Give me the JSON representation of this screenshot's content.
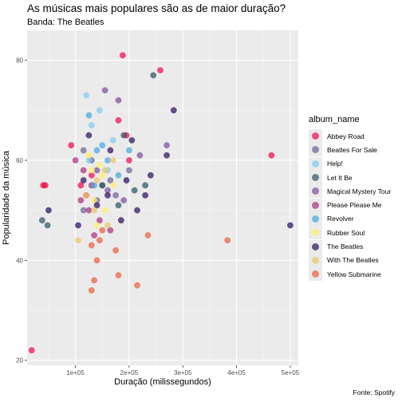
{
  "chart_data": {
    "type": "scatter",
    "title": "As músicas mais populares são as de maior duração?",
    "subtitle": "Banda: The Beatles",
    "xlabel": "Duração (milissegundos)",
    "ylabel": "Popularidade da música",
    "caption": "Fonte: Spotify",
    "xlim": [
      10000,
      515000
    ],
    "ylim": [
      19000,
      86000
    ],
    "ylim_units": "popularity",
    "y_range": [
      19,
      86
    ],
    "x_ticks": [
      100000,
      200000,
      300000,
      400000,
      500000
    ],
    "x_tick_labels": [
      "1e+05",
      "2e+05",
      "3e+05",
      "4e+05",
      "5e+05"
    ],
    "y_ticks": [
      20,
      40,
      60,
      80
    ],
    "y_tick_labels": [
      "20",
      "40",
      "60",
      "80"
    ],
    "grid": true,
    "legend_position": "right",
    "legend_title": "album_name",
    "series": [
      {
        "name": "Abbey Road",
        "color": "#ee0a4a",
        "points": [
          [
            18500,
            22
          ],
          [
            40000,
            55
          ],
          [
            44000,
            55
          ],
          [
            92000,
            63
          ],
          [
            188000,
            81
          ],
          [
            258000,
            78
          ],
          [
            180000,
            68
          ],
          [
            195000,
            65
          ],
          [
            465000,
            61
          ],
          [
            130000,
            57
          ],
          [
            110000,
            55
          ],
          [
            120000,
            53
          ],
          [
            200000,
            60
          ]
        ]
      },
      {
        "name": "Beatles For Sale",
        "color": "#6d6396",
        "points": [
          [
            115000,
            50
          ],
          [
            140000,
            52
          ],
          [
            165000,
            56
          ],
          [
            200000,
            58
          ],
          [
            115000,
            62
          ],
          [
            130000,
            60
          ],
          [
            150000,
            55
          ],
          [
            175000,
            53
          ]
        ]
      },
      {
        "name": "Help!",
        "color": "#7fcaf0",
        "points": [
          [
            120000,
            73
          ],
          [
            145000,
            70
          ],
          [
            130000,
            67
          ],
          [
            170000,
            64
          ],
          [
            125000,
            60
          ],
          [
            160000,
            58
          ]
        ]
      },
      {
        "name": "Let It Be",
        "color": "#2f5462",
        "points": [
          [
            38000,
            48
          ],
          [
            48000,
            47
          ],
          [
            245000,
            77
          ],
          [
            190000,
            65
          ],
          [
            150000,
            55
          ],
          [
            210000,
            54
          ],
          [
            180000,
            51
          ],
          [
            230000,
            55
          ]
        ]
      },
      {
        "name": "Magical Mystery Tour",
        "color": "#7c4f9e",
        "points": [
          [
            155000,
            74
          ],
          [
            180000,
            72
          ],
          [
            270000,
            63
          ],
          [
            220000,
            61
          ],
          [
            140000,
            58
          ],
          [
            160000,
            54
          ],
          [
            190000,
            52
          ]
        ]
      },
      {
        "name": "Please Please Me",
        "color": "#a9317f",
        "points": [
          [
            100000,
            60
          ],
          [
            115000,
            58
          ],
          [
            130000,
            55
          ],
          [
            125000,
            50
          ],
          [
            145000,
            48
          ],
          [
            165000,
            46
          ],
          [
            135000,
            45
          ],
          [
            110000,
            52
          ]
        ]
      },
      {
        "name": "Revolver",
        "color": "#44a8dd",
        "points": [
          [
            125000,
            69
          ],
          [
            140000,
            62
          ],
          [
            160000,
            60
          ],
          [
            180000,
            57
          ],
          [
            135000,
            55
          ],
          [
            150000,
            63
          ],
          [
            200000,
            62
          ]
        ]
      },
      {
        "name": "Rubber Soul",
        "color": "#fff065",
        "points": [
          [
            150000,
            57
          ],
          [
            125000,
            61
          ],
          [
            145000,
            59
          ],
          [
            170000,
            55
          ],
          [
            135000,
            52
          ],
          [
            155000,
            50
          ],
          [
            140000,
            47
          ],
          [
            130000,
            58
          ]
        ]
      },
      {
        "name": "The Beatles",
        "color": "#2b0f5e",
        "points": [
          [
            50000,
            50
          ],
          [
            283000,
            70
          ],
          [
            270000,
            61
          ],
          [
            240000,
            57
          ],
          [
            500000,
            47
          ],
          [
            230000,
            53
          ],
          [
            195000,
            56
          ],
          [
            215000,
            50
          ],
          [
            185000,
            48
          ],
          [
            160000,
            53
          ],
          [
            140000,
            51
          ],
          [
            105000,
            47
          ],
          [
            115000,
            56
          ],
          [
            125000,
            65
          ],
          [
            165000,
            62
          ],
          [
            205000,
            64
          ]
        ]
      },
      {
        "name": "With The Beatles",
        "color": "#e9c76a",
        "points": [
          [
            105000,
            44
          ],
          [
            120000,
            53
          ],
          [
            140000,
            56
          ],
          [
            155000,
            58
          ],
          [
            170000,
            60
          ],
          [
            135000,
            50
          ],
          [
            160000,
            47
          ]
        ]
      },
      {
        "name": "Yellow Submarine",
        "color": "#ea5f3f",
        "points": [
          [
            383000,
            44
          ],
          [
            180000,
            37
          ],
          [
            215000,
            35
          ],
          [
            235000,
            45
          ],
          [
            135000,
            36
          ],
          [
            130000,
            34
          ],
          [
            140000,
            40
          ],
          [
            145000,
            44
          ],
          [
            150000,
            46
          ],
          [
            130000,
            43
          ],
          [
            175000,
            42
          ]
        ]
      }
    ]
  }
}
